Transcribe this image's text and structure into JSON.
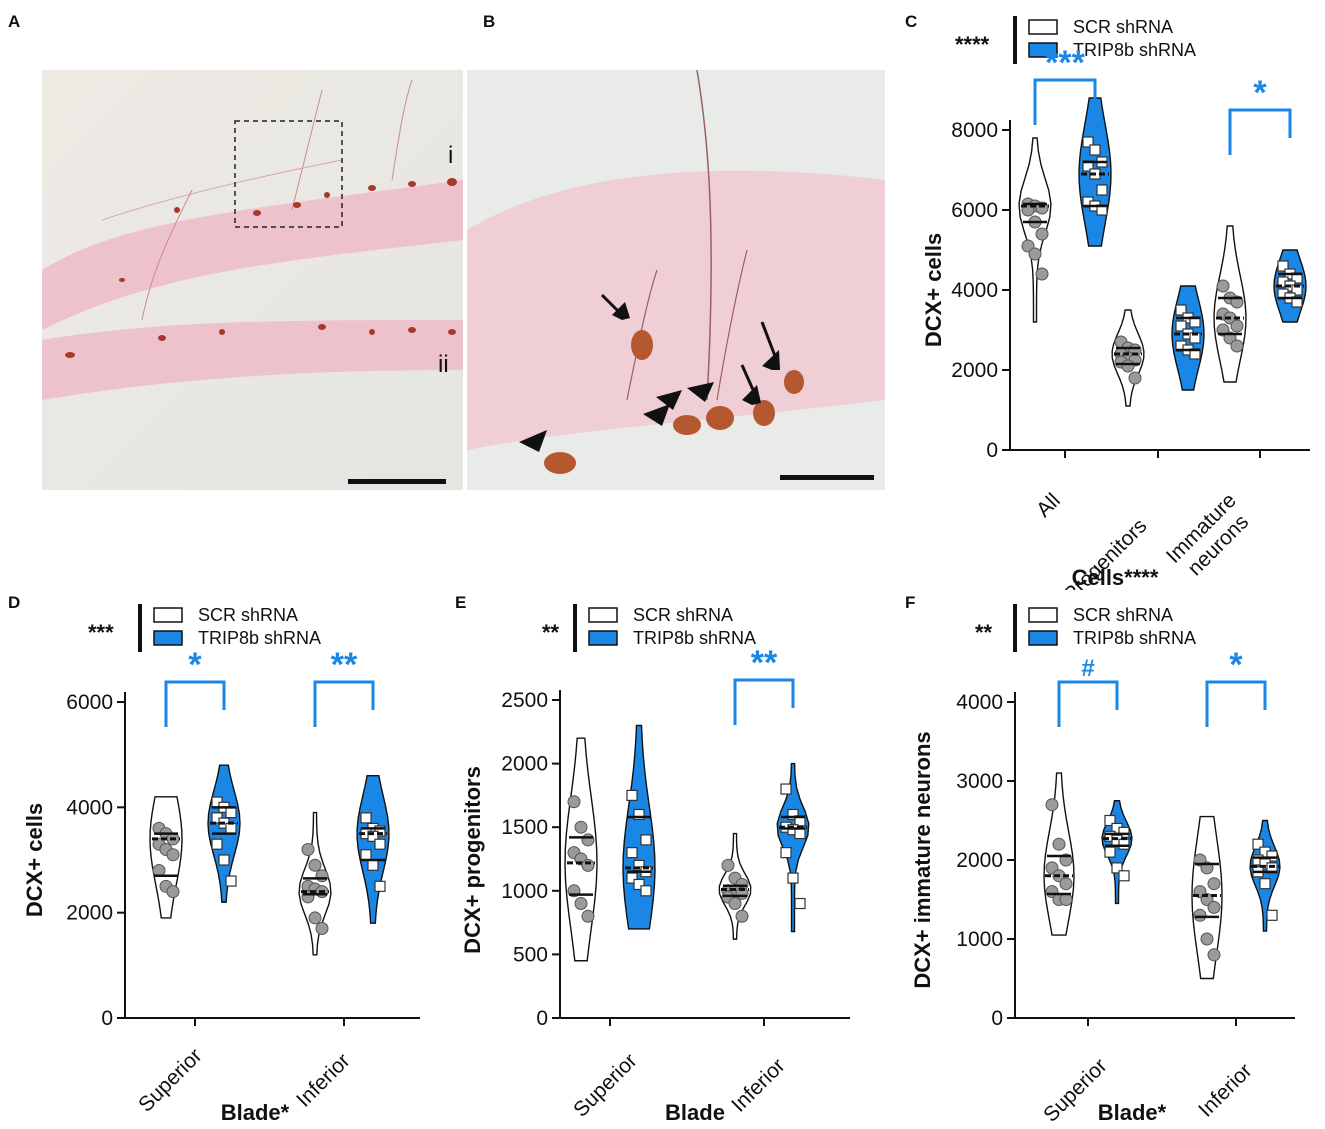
{
  "panels": {
    "A": {
      "label": "A",
      "layer_i": "i",
      "layer_ii": "ii"
    },
    "B": {
      "label": "B"
    },
    "C": {
      "label": "C"
    },
    "D": {
      "label": "D"
    },
    "E": {
      "label": "E"
    },
    "F": {
      "label": "F"
    }
  },
  "legend": {
    "scr": "SCR shRNA",
    "trip": "TRIP8b shRNA"
  },
  "colors": {
    "scr": "#ffffff",
    "trip": "#1a87e6",
    "sig": "#1a87e6",
    "dots_scr": "#9a9a9a",
    "axis": "#111111"
  },
  "chart_data": [
    {
      "panel": "C",
      "type": "violin",
      "ylabel": "DCX+ cells",
      "xlabel": "Cells****",
      "yticks": [
        0,
        2000,
        4000,
        6000,
        8000
      ],
      "ylim": [
        0,
        8000
      ],
      "categories": [
        "All",
        "Progenitors",
        "Immature neurons"
      ],
      "category_lines": [
        [
          "All"
        ],
        [
          "Progenitors"
        ],
        [
          "Immature",
          "neurons"
        ]
      ],
      "legend_sig": "****",
      "series": [
        {
          "name": "SCR shRNA",
          "median": [
            6100,
            2400,
            3300
          ],
          "quartiles": [
            [
              5700,
              6150
            ],
            [
              2150,
              2550
            ],
            [
              2900,
              3800
            ]
          ],
          "range": [
            [
              3200,
              7800
            ],
            [
              1100,
              3500
            ],
            [
              1700,
              5600
            ]
          ],
          "points": [
            [
              6150,
              6100,
              6050,
              6000,
              5700,
              5400,
              5100,
              4900,
              4400
            ],
            [
              2700,
              2550,
              2500,
              2400,
              2300,
              2250,
              2200,
              2100,
              1800
            ],
            [
              4100,
              3800,
              3700,
              3400,
              3300,
              3100,
              3000,
              2800,
              2600
            ]
          ]
        },
        {
          "name": "TRIP8b shRNA",
          "median": [
            6900,
            2900,
            4100
          ],
          "quartiles": [
            [
              6100,
              7200
            ],
            [
              2500,
              3300
            ],
            [
              3800,
              4400
            ]
          ],
          "range": [
            [
              5100,
              8800
            ],
            [
              1500,
              4100
            ],
            [
              3200,
              5000
            ]
          ],
          "points": [
            [
              7700,
              7500,
              7200,
              7100,
              6900,
              6500,
              6200,
              6100,
              6000
            ],
            [
              3500,
              3300,
              3200,
              3100,
              2900,
              2800,
              2600,
              2500,
              2400
            ],
            [
              4600,
              4400,
              4300,
              4200,
              4100,
              4000,
              3900,
              3800,
              3700
            ]
          ]
        }
      ],
      "significance": [
        {
          "category": "All",
          "label": "***"
        },
        {
          "category": "Immature neurons",
          "label": "*"
        }
      ]
    },
    {
      "panel": "D",
      "type": "violin",
      "ylabel": "DCX+ cells",
      "xlabel": "Blade*",
      "yticks": [
        0,
        2000,
        4000,
        6000
      ],
      "ylim": [
        0,
        6000
      ],
      "categories": [
        "Superior",
        "Inferior"
      ],
      "category_lines": [
        [
          "Superior"
        ],
        [
          "Inferior"
        ]
      ],
      "legend_sig": "***",
      "series": [
        {
          "name": "SCR shRNA",
          "median": [
            3400,
            2400
          ],
          "quartiles": [
            [
              2700,
              3500
            ],
            [
              2350,
              2650
            ]
          ],
          "range": [
            [
              1900,
              4200
            ],
            [
              1200,
              3900
            ]
          ],
          "points": [
            [
              3600,
              3500,
              3400,
              3300,
              3200,
              3100,
              2800,
              2500,
              2400
            ],
            [
              3200,
              2900,
              2700,
              2500,
              2450,
              2400,
              2300,
              1900,
              1700
            ]
          ]
        },
        {
          "name": "TRIP8b shRNA",
          "median": [
            3700,
            3500
          ],
          "quartiles": [
            [
              3500,
              4000
            ],
            [
              3000,
              3600
            ]
          ],
          "range": [
            [
              2200,
              4800
            ],
            [
              1800,
              4600
            ]
          ],
          "points": [
            [
              4100,
              4000,
              3900,
              3800,
              3700,
              3600,
              3300,
              3000,
              2600
            ],
            [
              3800,
              3600,
              3550,
              3500,
              3450,
              3300,
              3100,
              2900,
              2500
            ]
          ]
        }
      ],
      "significance": [
        {
          "category": "Superior",
          "label": "*"
        },
        {
          "category": "Inferior",
          "label": "**"
        }
      ]
    },
    {
      "panel": "E",
      "type": "violin",
      "ylabel": "DCX+ progenitors",
      "xlabel": "Blade",
      "yticks": [
        0,
        500,
        1000,
        1500,
        2000,
        2500
      ],
      "ylim": [
        0,
        2500
      ],
      "categories": [
        "Superior",
        "Inferior"
      ],
      "category_lines": [
        [
          "Superior"
        ],
        [
          "Inferior"
        ]
      ],
      "legend_sig": "**",
      "series": [
        {
          "name": "SCR shRNA",
          "median": [
            1220,
            1010
          ],
          "quartiles": [
            [
              970,
              1420
            ],
            [
              960,
              1040
            ]
          ],
          "range": [
            [
              450,
              2200
            ],
            [
              620,
              1450
            ]
          ],
          "points": [
            [
              1700,
              1500,
              1400,
              1300,
              1250,
              1200,
              1000,
              900,
              800
            ],
            [
              1200,
              1100,
              1050,
              1000,
              1000,
              980,
              950,
              900,
              800
            ]
          ]
        },
        {
          "name": "TRIP8b shRNA",
          "median": [
            1180,
            1500
          ],
          "quartiles": [
            [
              1150,
              1580
            ],
            [
              1490,
              1580
            ]
          ],
          "range": [
            [
              700,
              2300
            ],
            [
              680,
              2000
            ]
          ],
          "points": [
            [
              1750,
              1600,
              1400,
              1300,
              1200,
              1150,
              1100,
              1050,
              1000
            ],
            [
              1800,
              1600,
              1550,
              1500,
              1480,
              1450,
              1300,
              1100,
              900
            ]
          ]
        }
      ],
      "significance": [
        {
          "category": "Inferior",
          "label": "**"
        }
      ]
    },
    {
      "panel": "F",
      "type": "violin",
      "ylabel": "DCX+ immature neurons",
      "xlabel": "Blade*",
      "yticks": [
        0,
        1000,
        2000,
        3000,
        4000
      ],
      "ylim": [
        0,
        4000
      ],
      "categories": [
        "Superior",
        "Inferior"
      ],
      "category_lines": [
        [
          "Superior"
        ],
        [
          "Inferior"
        ]
      ],
      "legend_sig": "**",
      "series": [
        {
          "name": "SCR shRNA",
          "median": [
            1800,
            1550
          ],
          "quartiles": [
            [
              1570,
              2050
            ],
            [
              1280,
              1950
            ]
          ],
          "range": [
            [
              1050,
              3100
            ],
            [
              500,
              2550
            ]
          ],
          "points": [
            [
              2700,
              2200,
              2000,
              1900,
              1800,
              1700,
              1600,
              1500,
              1500
            ],
            [
              2000,
              1900,
              1700,
              1600,
              1500,
              1400,
              1300,
              1000,
              800
            ]
          ]
        },
        {
          "name": "TRIP8b shRNA",
          "median": [
            2270,
            1920
          ],
          "quartiles": [
            [
              2180,
              2330
            ],
            [
              1850,
              2030
            ]
          ],
          "range": [
            [
              1450,
              2750
            ],
            [
              1100,
              2500
            ]
          ],
          "points": [
            [
              2500,
              2400,
              2350,
              2300,
              2250,
              2200,
              2100,
              1900,
              1800
            ],
            [
              2200,
              2100,
              2050,
              2000,
              1950,
              1900,
              1850,
              1700,
              1300
            ]
          ]
        }
      ],
      "significance": [
        {
          "category": "Superior",
          "label": "#"
        },
        {
          "category": "Inferior",
          "label": "*"
        }
      ]
    }
  ]
}
